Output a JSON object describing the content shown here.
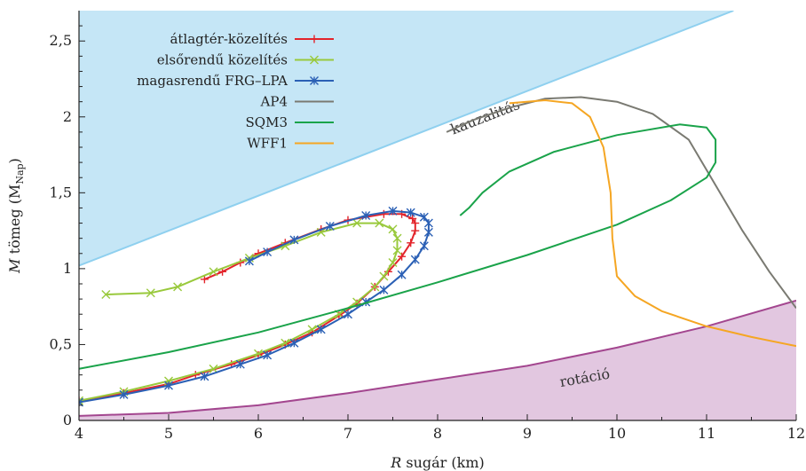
{
  "chart_data": {
    "type": "line",
    "xlabel": "R sugár (km)",
    "ylabel": "M tömeg (MNap)",
    "xlabel_italic": "R",
    "xlabel_rest": " sugár (km)",
    "ylabel_italic": "M",
    "ylabel_rest": " tömeg (M",
    "ylabel_sub": "Nap",
    "ylabel_close": ")",
    "xlim": [
      4,
      12
    ],
    "ylim": [
      0,
      2.7
    ],
    "xticks": [
      4,
      5,
      6,
      7,
      8,
      9,
      10,
      11,
      12
    ],
    "yticks": [
      0,
      0.5,
      1,
      1.5,
      2,
      2.5
    ],
    "ytick_labels": [
      "0",
      "0,5",
      "1",
      "1,5",
      "2",
      "2,5"
    ],
    "legend_position": "top-left",
    "regions": [
      {
        "name": "kauzalitás",
        "color": "#c5e6f6",
        "edge_color": "#8fd0ef",
        "boundary": [
          [
            4,
            1.02
          ],
          [
            11.3,
            2.7
          ]
        ],
        "fill": "above"
      },
      {
        "name": "rotáció",
        "color": "#e2c7e0",
        "edge_color": "#a3468f",
        "boundary": [
          [
            4.0,
            0.03
          ],
          [
            5.0,
            0.05
          ],
          [
            6.0,
            0.1
          ],
          [
            7.0,
            0.18
          ],
          [
            8.0,
            0.27
          ],
          [
            9.0,
            0.36
          ],
          [
            10.0,
            0.48
          ],
          [
            11.0,
            0.62
          ],
          [
            12.0,
            0.79
          ]
        ],
        "fill": "below"
      }
    ],
    "series": [
      {
        "name": "átlagtér-közelítés",
        "color": "#e3242b",
        "marker": "+",
        "points": [
          [
            4.0,
            0.13
          ],
          [
            4.5,
            0.18
          ],
          [
            5.0,
            0.24
          ],
          [
            5.3,
            0.3
          ],
          [
            5.7,
            0.37
          ],
          [
            6.0,
            0.43
          ],
          [
            6.3,
            0.5
          ],
          [
            6.6,
            0.58
          ],
          [
            6.9,
            0.69
          ],
          [
            7.1,
            0.77
          ],
          [
            7.3,
            0.88
          ],
          [
            7.45,
            0.98
          ],
          [
            7.6,
            1.08
          ],
          [
            7.7,
            1.17
          ],
          [
            7.75,
            1.25
          ],
          [
            7.75,
            1.3
          ],
          [
            7.72,
            1.33
          ],
          [
            7.6,
            1.36
          ],
          [
            7.4,
            1.36
          ],
          [
            7.0,
            1.32
          ],
          [
            6.7,
            1.26
          ],
          [
            6.3,
            1.17
          ],
          [
            6.0,
            1.1
          ],
          [
            5.8,
            1.04
          ],
          [
            5.6,
            0.98
          ],
          [
            5.4,
            0.93
          ]
        ]
      },
      {
        "name": "elsőrendű közelítés",
        "color": "#99c93c",
        "marker": "x",
        "points": [
          [
            4.0,
            0.13
          ],
          [
            4.5,
            0.19
          ],
          [
            5.0,
            0.26
          ],
          [
            5.5,
            0.34
          ],
          [
            6.0,
            0.44
          ],
          [
            6.3,
            0.51
          ],
          [
            6.6,
            0.6
          ],
          [
            6.9,
            0.7
          ],
          [
            7.1,
            0.78
          ],
          [
            7.3,
            0.88
          ],
          [
            7.4,
            0.95
          ],
          [
            7.5,
            1.04
          ],
          [
            7.55,
            1.12
          ],
          [
            7.55,
            1.2
          ],
          [
            7.5,
            1.26
          ],
          [
            7.35,
            1.3
          ],
          [
            7.1,
            1.3
          ],
          [
            6.7,
            1.24
          ],
          [
            6.3,
            1.15
          ],
          [
            5.9,
            1.07
          ],
          [
            5.5,
            0.98
          ],
          [
            5.1,
            0.88
          ],
          [
            4.8,
            0.84
          ],
          [
            4.3,
            0.83
          ]
        ]
      },
      {
        "name": "magasrendű FRG–LPA",
        "color": "#2b60b5",
        "marker": "*",
        "points": [
          [
            4.0,
            0.12
          ],
          [
            4.5,
            0.17
          ],
          [
            5.0,
            0.23
          ],
          [
            5.4,
            0.29
          ],
          [
            5.8,
            0.37
          ],
          [
            6.1,
            0.43
          ],
          [
            6.4,
            0.51
          ],
          [
            6.7,
            0.6
          ],
          [
            7.0,
            0.7
          ],
          [
            7.2,
            0.78
          ],
          [
            7.4,
            0.86
          ],
          [
            7.6,
            0.96
          ],
          [
            7.75,
            1.06
          ],
          [
            7.85,
            1.15
          ],
          [
            7.9,
            1.24
          ],
          [
            7.9,
            1.3
          ],
          [
            7.85,
            1.34
          ],
          [
            7.7,
            1.37
          ],
          [
            7.5,
            1.38
          ],
          [
            7.2,
            1.35
          ],
          [
            6.8,
            1.28
          ],
          [
            6.4,
            1.19
          ],
          [
            6.1,
            1.11
          ],
          [
            5.9,
            1.05
          ]
        ]
      },
      {
        "name": "AP4",
        "color": "#7a7a72",
        "marker": "",
        "points": [
          [
            8.1,
            1.9
          ],
          [
            8.4,
            1.98
          ],
          [
            8.8,
            2.06
          ],
          [
            9.2,
            2.12
          ],
          [
            9.6,
            2.13
          ],
          [
            10.0,
            2.1
          ],
          [
            10.4,
            2.02
          ],
          [
            10.8,
            1.85
          ],
          [
            11.1,
            1.55
          ],
          [
            11.4,
            1.25
          ],
          [
            11.7,
            0.98
          ],
          [
            12.0,
            0.74
          ]
        ]
      },
      {
        "name": "SQM3",
        "color": "#1aa34a",
        "marker": "",
        "points": [
          [
            4.0,
            0.34
          ],
          [
            5.0,
            0.45
          ],
          [
            6.0,
            0.58
          ],
          [
            7.0,
            0.74
          ],
          [
            8.0,
            0.91
          ],
          [
            9.0,
            1.09
          ],
          [
            10.0,
            1.29
          ],
          [
            10.6,
            1.45
          ],
          [
            11.0,
            1.6
          ],
          [
            11.1,
            1.7
          ],
          [
            11.1,
            1.85
          ],
          [
            11.0,
            1.93
          ],
          [
            10.7,
            1.95
          ],
          [
            10.0,
            1.88
          ],
          [
            9.3,
            1.77
          ],
          [
            8.8,
            1.64
          ],
          [
            8.5,
            1.5
          ],
          [
            8.35,
            1.4
          ],
          [
            8.25,
            1.35
          ]
        ]
      },
      {
        "name": "WFF1",
        "color": "#f5a623",
        "marker": "",
        "points": [
          [
            8.8,
            2.09
          ],
          [
            9.2,
            2.11
          ],
          [
            9.5,
            2.09
          ],
          [
            9.7,
            2.0
          ],
          [
            9.85,
            1.8
          ],
          [
            9.93,
            1.5
          ],
          [
            9.95,
            1.2
          ],
          [
            10.0,
            0.95
          ],
          [
            10.2,
            0.82
          ],
          [
            10.5,
            0.72
          ],
          [
            11.0,
            0.62
          ],
          [
            11.5,
            0.55
          ],
          [
            12.0,
            0.49
          ]
        ]
      }
    ]
  }
}
